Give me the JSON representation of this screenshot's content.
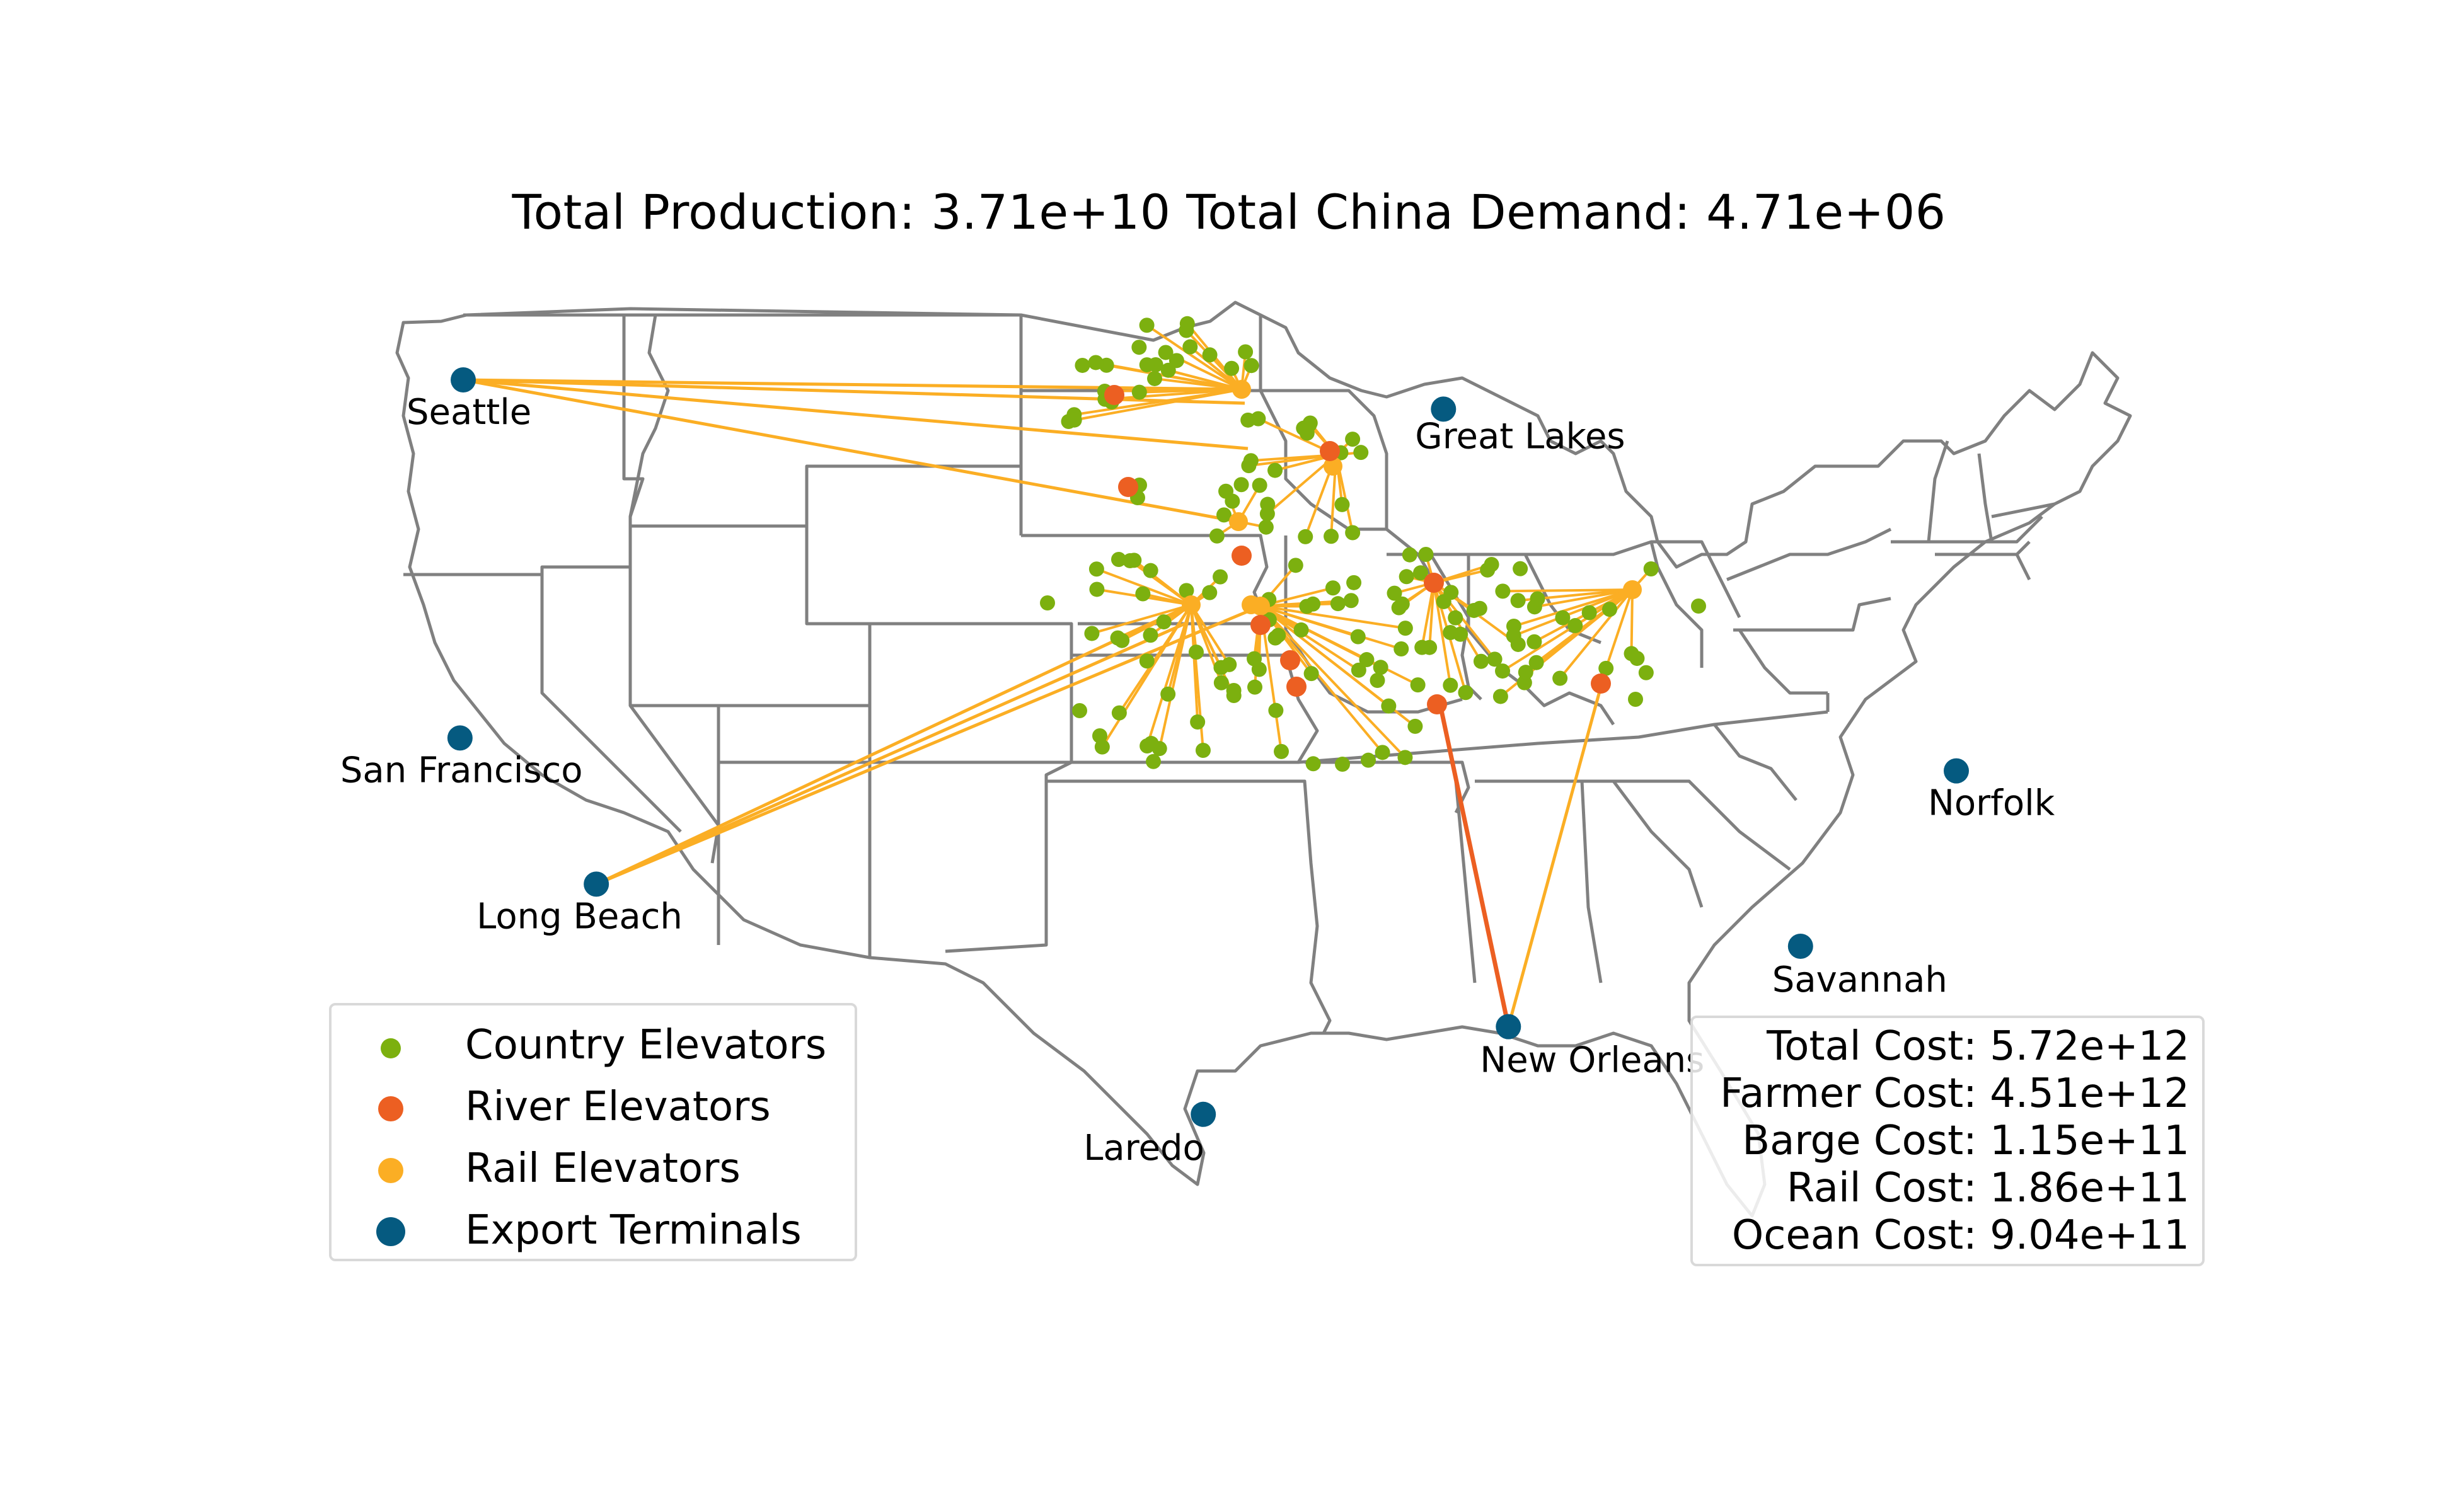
{
  "title": "Total Production: 3.71e+10  Total China Demand: 4.71e+06",
  "colors": {
    "country": "#7cb00f",
    "river": "#ec5f22",
    "rail": "#fbae24",
    "export": "#055a80",
    "border": "#808080"
  },
  "legend": {
    "country": "Country Elevators",
    "river": "River Elevators",
    "rail": "Rail Elevators",
    "export": "Export Terminals"
  },
  "costs": {
    "total": "Total Cost: 5.72e+12",
    "farmer": "Farmer Cost: 4.51e+12",
    "barge": "Barge Cost: 1.15e+11",
    "rail": "Rail Cost: 1.86e+11",
    "ocean": "Ocean Cost: 9.04e+11"
  },
  "terminals": [
    {
      "name": "Seattle",
      "lon": -122.3,
      "lat": 47.6
    },
    {
      "name": "Great Lakes",
      "lon": -92.1,
      "lat": 46.8
    },
    {
      "name": "San Francisco",
      "lon": -122.4,
      "lat": 37.8
    },
    {
      "name": "Long Beach",
      "lon": -118.2,
      "lat": 33.8
    },
    {
      "name": "Norfolk",
      "lon": -76.3,
      "lat": 36.9
    },
    {
      "name": "Savannah",
      "lon": -81.1,
      "lat": 32.1
    },
    {
      "name": "New Orleans",
      "lon": -90.1,
      "lat": 29.9
    },
    {
      "name": "Laredo",
      "lon": -99.5,
      "lat": 27.5
    }
  ]
}
